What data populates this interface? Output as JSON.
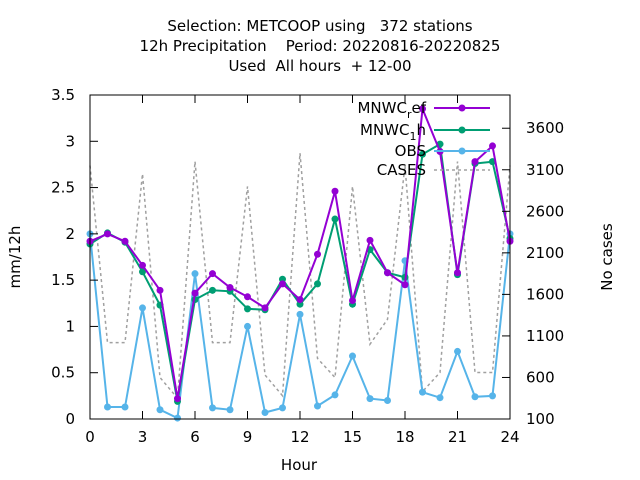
{
  "chart_data": {
    "type": "line",
    "title_lines": [
      "Selection: METCOOP using   372 stations",
      "12h Precipitation    Period: 20220816-20220825",
      "Used  All hours  + 12-00"
    ],
    "xlabel": "Hour",
    "ylabel": "mm/12h",
    "y2label": "No cases",
    "xlim": [
      0,
      24
    ],
    "ylim": [
      0,
      3.5
    ],
    "y2lim": [
      100,
      4000
    ],
    "xticks": [
      0,
      3,
      6,
      9,
      12,
      15,
      18,
      21,
      24
    ],
    "xtick_labels": [
      "0",
      "3",
      "6",
      "9",
      "12",
      "15",
      "18",
      "21",
      "24"
    ],
    "yticks": [
      0,
      0.5,
      1,
      1.5,
      2,
      2.5,
      3,
      3.5
    ],
    "ytick_labels": [
      "0",
      "0.5",
      "1",
      "1.5",
      "2",
      "2.5",
      "3",
      "3.5"
    ],
    "y2ticks": [
      100,
      600,
      1100,
      1600,
      2100,
      2600,
      3100,
      3600
    ],
    "y2tick_labels": [
      "100",
      "600",
      "1100",
      "1600",
      "2100",
      "2600",
      "3100",
      "3600"
    ],
    "legend_position": "top-right",
    "grid": false,
    "x": [
      0,
      1,
      2,
      3,
      4,
      5,
      6,
      7,
      8,
      9,
      10,
      11,
      12,
      13,
      14,
      15,
      16,
      17,
      18,
      19,
      20,
      21,
      22,
      23,
      24
    ],
    "series": [
      {
        "name": "MNWC_ref",
        "legend_parts": [
          "MNWC",
          "r",
          "ef"
        ],
        "color": "#9400d3",
        "axis": "y",
        "style": "solid",
        "values": [
          1.92,
          2.0,
          1.92,
          1.66,
          1.39,
          0.22,
          1.36,
          1.57,
          1.42,
          1.32,
          1.2,
          1.46,
          1.29,
          1.78,
          2.46,
          1.28,
          1.93,
          1.58,
          1.45,
          3.35,
          2.89,
          1.58,
          2.78,
          2.95,
          1.92
        ]
      },
      {
        "name": "MNWC_1h",
        "legend_parts": [
          "MNWC",
          "1",
          "h"
        ],
        "color": "#009e73",
        "axis": "y",
        "style": "solid",
        "values": [
          1.89,
          2.01,
          1.91,
          1.59,
          1.23,
          0.19,
          1.29,
          1.39,
          1.38,
          1.19,
          1.18,
          1.51,
          1.24,
          1.46,
          2.16,
          1.24,
          1.83,
          1.58,
          1.53,
          2.86,
          2.97,
          1.56,
          2.76,
          2.78,
          1.95
        ]
      },
      {
        "name": "OBS",
        "legend_parts": [
          "OBS"
        ],
        "color": "#56b4e9",
        "axis": "y",
        "style": "solid",
        "values": [
          2.0,
          0.13,
          0.13,
          1.2,
          0.1,
          0.01,
          1.57,
          0.12,
          0.1,
          1.0,
          0.07,
          0.12,
          1.13,
          0.14,
          0.26,
          0.68,
          0.22,
          0.2,
          1.71,
          0.29,
          0.23,
          0.73,
          0.24,
          0.25,
          2.0
        ]
      },
      {
        "name": "CASES",
        "legend_parts": [
          "CASES"
        ],
        "color": "#a0a0a0",
        "axis": "y2",
        "style": "dashed",
        "values": [
          3150,
          1020,
          1020,
          3050,
          600,
          350,
          3200,
          1020,
          1020,
          2900,
          630,
          380,
          3300,
          830,
          600,
          2900,
          1000,
          1300,
          3150,
          430,
          660,
          3200,
          660,
          660,
          3150
        ]
      }
    ]
  }
}
